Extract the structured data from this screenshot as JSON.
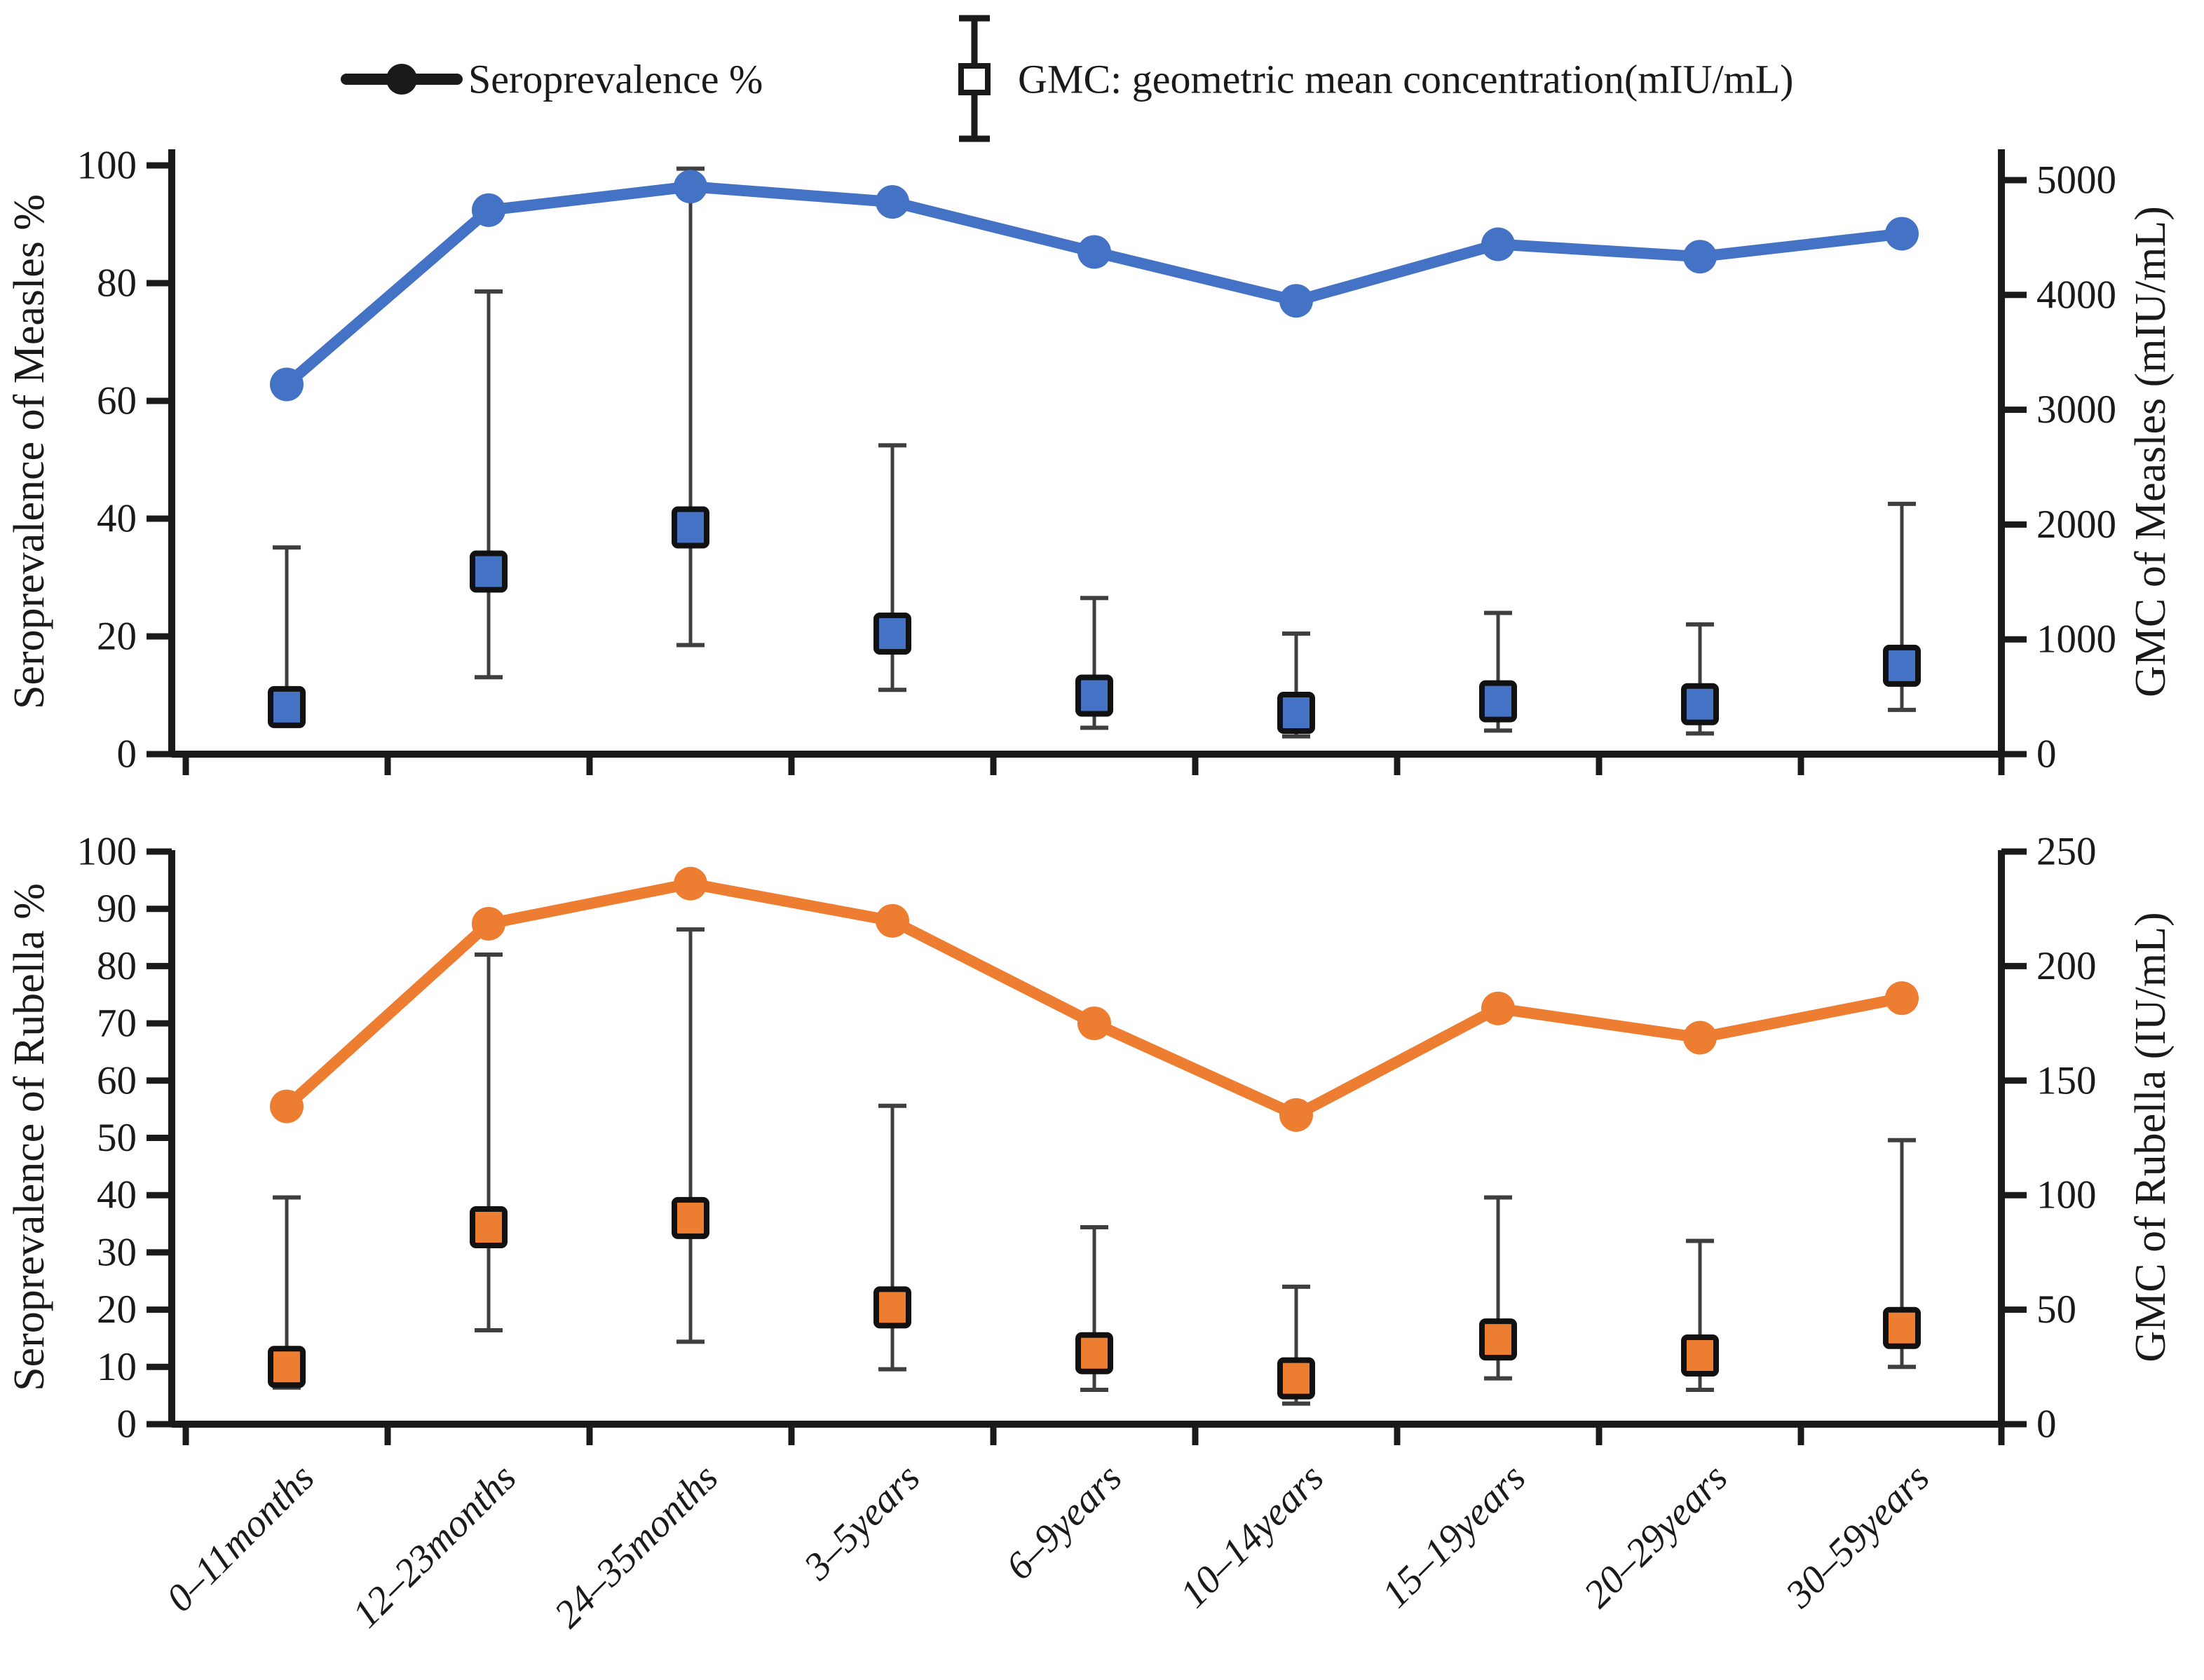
{
  "legend": {
    "series1_label": "Seroprevalence %",
    "series2_label": "GMC: geometric mean concentration(mIU/mL)"
  },
  "colors": {
    "measles": "#4472C4",
    "rubella": "#ED7D31",
    "marker_outline": "#111111",
    "whisker": "#3f3f3f",
    "axis": "#1a1a1a",
    "legend_glyph": "#1a1a1a"
  },
  "chart_data": [
    {
      "type": "line",
      "panel": "measles",
      "categories": [
        "0–11months",
        "12–23months",
        "24–35months",
        "3–5years",
        "6–9years",
        "10–14years",
        "15–19years",
        "20–29years",
        "30–59years"
      ],
      "left_axis": {
        "label": "Seroprevalence of Measles %",
        "min": 0,
        "max": 100,
        "ticks": [
          0,
          20,
          40,
          60,
          80,
          100
        ]
      },
      "right_axis": {
        "label": "GMC of Measles (mIU/mL)",
        "min": 0,
        "max": 5000,
        "ticks": [
          0,
          1000,
          2000,
          3000,
          4000,
          5000
        ]
      },
      "series": [
        {
          "name": "Seroprevalence %",
          "axis": "left",
          "marker": "circle",
          "values": [
            62.8,
            92.4,
            96.4,
            93.8,
            85.3,
            77.0,
            86.6,
            84.5,
            88.4
          ]
        },
        {
          "name": "GMC: geometric mean concentration(mIU/mL)",
          "axis": "right",
          "marker": "square",
          "values": [
            410,
            1590,
            1975,
            1050,
            510,
            360,
            460,
            435,
            770
          ],
          "upper": [
            1800,
            4030,
            5100,
            2690,
            1360,
            1050,
            1230,
            1130,
            2180
          ],
          "lower": [
            null,
            670,
            950,
            560,
            230,
            155,
            205,
            180,
            385
          ]
        }
      ],
      "legend_position": "top",
      "grid": false
    },
    {
      "type": "line",
      "panel": "rubella",
      "categories": [
        "0–11months",
        "12–23months",
        "24–35months",
        "3–5years",
        "6–9years",
        "10–14years",
        "15–19years",
        "20–29years",
        "30–59years"
      ],
      "left_axis": {
        "label": "Seroprevalence of Rubella %",
        "min": 0,
        "max": 100,
        "ticks": [
          0,
          10,
          20,
          30,
          40,
          50,
          60,
          70,
          80,
          90,
          100
        ]
      },
      "right_axis": {
        "label": "GMC of Rubella (IU/mL)",
        "min": 0,
        "max": 250,
        "ticks": [
          0,
          50,
          100,
          150,
          200,
          250
        ]
      },
      "series": [
        {
          "name": "Seroprevalence %",
          "axis": "left",
          "marker": "circle",
          "values": [
            55.5,
            87.4,
            94.4,
            87.9,
            70.0,
            54.0,
            72.6,
            67.5,
            74.4
          ]
        },
        {
          "name": "GMC: geometric mean concentration(mIU/mL)",
          "axis": "right",
          "marker": "square",
          "values": [
            25,
            86,
            90,
            51,
            31,
            20,
            37,
            30,
            42
          ],
          "upper": [
            99,
            205,
            216,
            139,
            86,
            60,
            99,
            80,
            124
          ],
          "lower": [
            16,
            41,
            36,
            24,
            15,
            9,
            20,
            15,
            25
          ]
        }
      ],
      "legend_position": "none",
      "grid": false
    }
  ]
}
